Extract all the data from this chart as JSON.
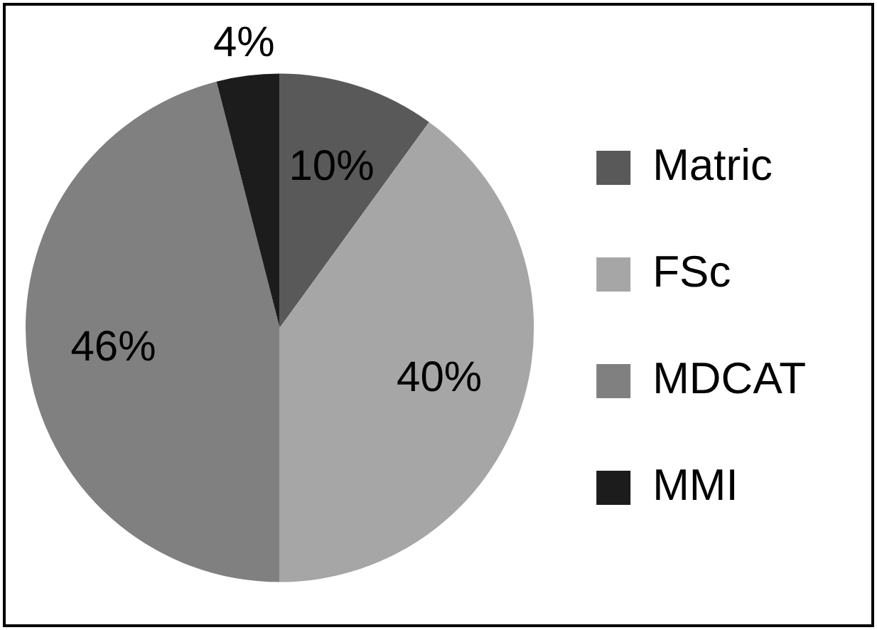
{
  "chart_data": {
    "type": "pie",
    "categories": [
      "Matric",
      "FSc",
      "MDCAT",
      "MMI"
    ],
    "values": [
      10,
      40,
      46,
      4
    ],
    "colors": [
      "#595959",
      "#a6a6a6",
      "#808080",
      "#1c1c1c"
    ],
    "value_labels": [
      "10%",
      "40%",
      "46%",
      "4%"
    ],
    "legend": "right"
  }
}
